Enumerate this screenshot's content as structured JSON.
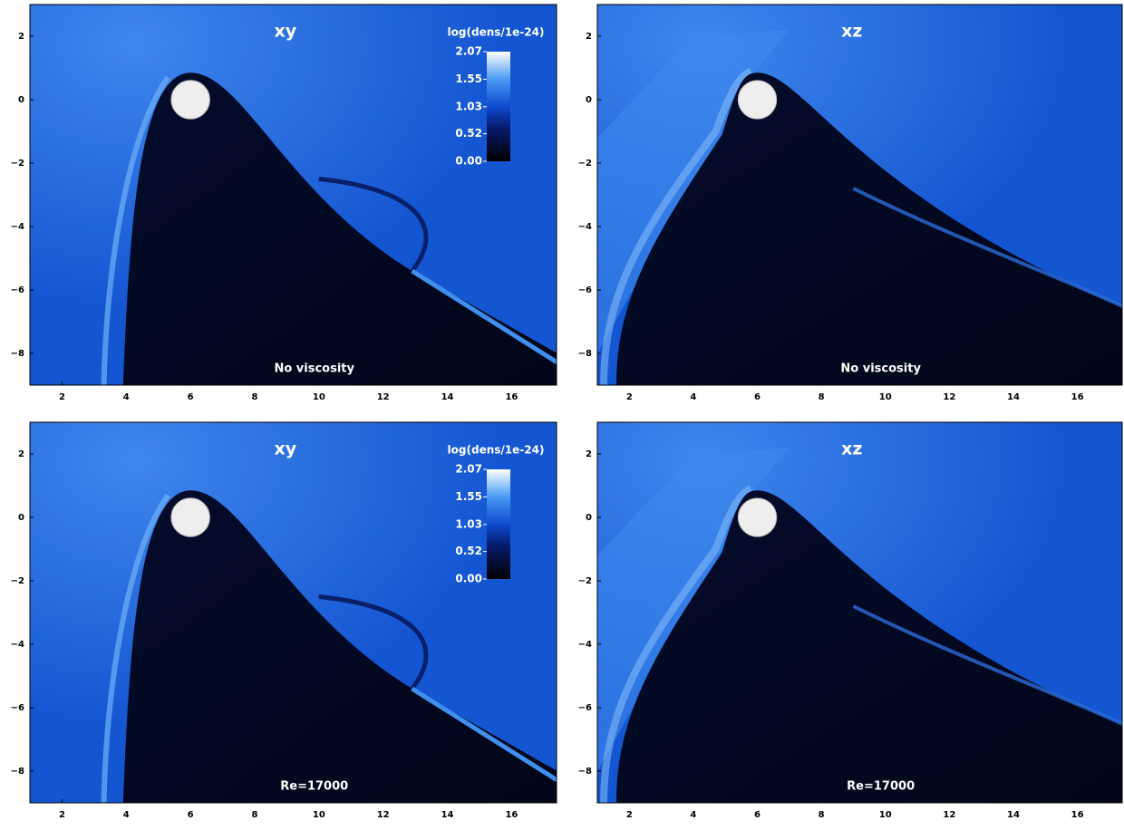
{
  "chart_data": [
    {
      "type": "heatmap",
      "title": "xy",
      "annotation": "No viscosity",
      "xlim": [
        1,
        17.4
      ],
      "ylim": [
        -9,
        3
      ],
      "xticks": [
        2,
        4,
        6,
        8,
        10,
        12,
        14,
        16
      ],
      "yticks": [
        {
          "value": -8,
          "label": "−8"
        },
        {
          "value": -6,
          "label": "−6"
        },
        {
          "value": -4,
          "label": "−4"
        },
        {
          "value": -2,
          "label": "−2"
        },
        0,
        2
      ],
      "colorbar": {
        "label": "log(dens/1e-24)",
        "lim": [
          0,
          2.07
        ],
        "ticks": [
          {
            "value": 0,
            "label": "0.00"
          },
          0.52,
          1.03,
          1.55,
          2.07
        ]
      }
    },
    {
      "type": "heatmap",
      "title": "xz",
      "annotation": "No viscosity",
      "xlim": [
        1,
        17.4
      ],
      "ylim": [
        -9,
        3
      ],
      "xticks": [
        2,
        4,
        6,
        8,
        10,
        12,
        14,
        16
      ],
      "yticks": [
        {
          "value": -8,
          "label": "−8"
        },
        {
          "value": -6,
          "label": "−6"
        },
        {
          "value": -4,
          "label": "−4"
        },
        {
          "value": -2,
          "label": "−2"
        },
        0,
        2
      ]
    },
    {
      "type": "heatmap",
      "title": "xy",
      "annotation": "Re=17000",
      "xlim": [
        1,
        17.4
      ],
      "ylim": [
        -9,
        3
      ],
      "xticks": [
        2,
        4,
        6,
        8,
        10,
        12,
        14,
        16
      ],
      "yticks": [
        {
          "value": -8,
          "label": "−8"
        },
        {
          "value": -6,
          "label": "−6"
        },
        {
          "value": -4,
          "label": "−4"
        },
        {
          "value": -2,
          "label": "−2"
        },
        0,
        2
      ],
      "colorbar": {
        "label": "log(dens/1e-24)",
        "lim": [
          0,
          2.07
        ],
        "ticks": [
          {
            "value": 0,
            "label": "0.00"
          },
          0.52,
          1.03,
          1.55,
          2.07
        ]
      }
    },
    {
      "type": "heatmap",
      "title": "xz",
      "annotation": "Re=17000",
      "xlim": [
        1,
        17.4
      ],
      "ylim": [
        -9,
        3
      ],
      "xticks": [
        2,
        4,
        6,
        8,
        10,
        12,
        14,
        16
      ],
      "yticks": [
        {
          "value": -8,
          "label": "−8"
        },
        {
          "value": -6,
          "label": "−6"
        },
        {
          "value": -4,
          "label": "−4"
        },
        {
          "value": -2,
          "label": "−2"
        },
        0,
        2
      ]
    }
  ]
}
